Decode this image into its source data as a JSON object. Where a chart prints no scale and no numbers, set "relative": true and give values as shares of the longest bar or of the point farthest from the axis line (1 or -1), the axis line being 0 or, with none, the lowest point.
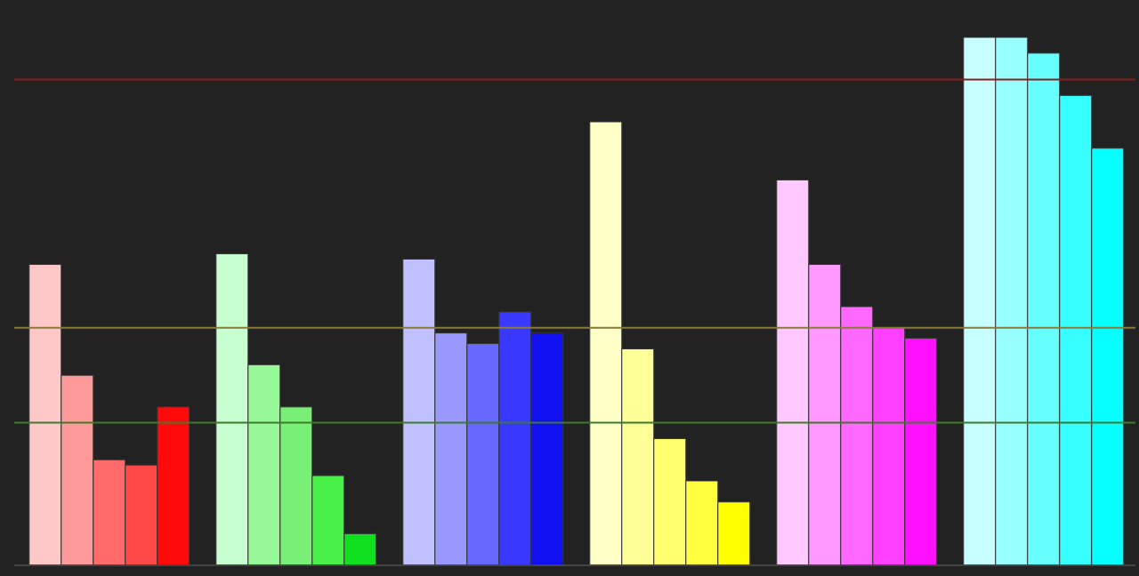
{
  "chart_data": {
    "type": "bar",
    "relative": true,
    "categories": [
      null,
      null,
      null,
      null,
      null,
      null
    ],
    "series": [
      {
        "colors": [
          "#ffc8c8",
          "#c8ffd0",
          "#c0c0ff",
          "#ffffc8",
          "#ffc8ff",
          "#c8ffff"
        ],
        "values": [
          0.57,
          0.59,
          0.58,
          0.84,
          0.73,
          1
        ]
      },
      {
        "colors": [
          "#ff9a9a",
          "#96f896",
          "#9898ff",
          "#ffff98",
          "#ff98ff",
          "#98ffff"
        ],
        "values": [
          0.36,
          0.38,
          0.44,
          0.41,
          0.57,
          1
        ]
      },
      {
        "colors": [
          "#ff6a6a",
          "#78f078",
          "#6868ff",
          "#ffff70",
          "#ff68ff",
          "#68ffff"
        ],
        "values": [
          0.2,
          0.3,
          0.42,
          0.24,
          0.49,
          0.97
        ]
      },
      {
        "colors": [
          "#ff4848",
          "#48f048",
          "#3838ff",
          "#ffff40",
          "#ff40ff",
          "#38ffff"
        ],
        "values": [
          0.19,
          0.17,
          0.48,
          0.16,
          0.45,
          0.89
        ]
      },
      {
        "colors": [
          "#ff0a0a",
          "#10e020",
          "#1010f0",
          "#ffff00",
          "#ff10ff",
          "#08ffff"
        ],
        "values": [
          0.3,
          0.06,
          0.44,
          0.12,
          0.43,
          0.79
        ]
      }
    ],
    "ref_lines": [
      {
        "axis": "y",
        "value": 0.92,
        "color": "#8a1f1f"
      },
      {
        "axis": "y",
        "value": 0.45,
        "color": "#8a7a3a"
      },
      {
        "axis": "y",
        "value": 0.27,
        "color": "#3f7a2a"
      }
    ]
  }
}
